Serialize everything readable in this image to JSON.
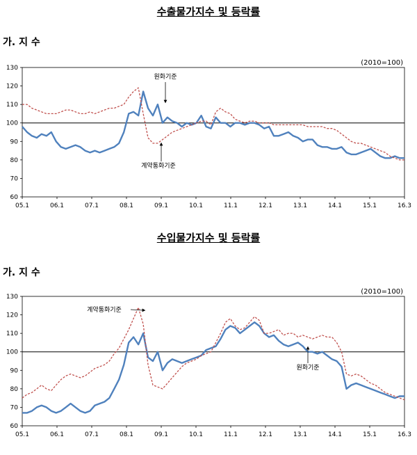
{
  "chart_data": [
    {
      "type": "line",
      "title": "수출물가지수 및 등락률",
      "subtitle": "가. 지 수",
      "unit": "(2010=100)",
      "ylim": [
        60,
        130
      ],
      "yticks": [
        60,
        70,
        80,
        90,
        100,
        110,
        120,
        130
      ],
      "x_tick_labels": [
        "05.1",
        "06.1",
        "07.1",
        "08.1",
        "09.1",
        "10.1",
        "11.1",
        "12.1",
        "13.1",
        "14.1",
        "15.1",
        "16.3"
      ],
      "reference_line": 100,
      "annotations": [
        "원화기준",
        "계약통화기준"
      ],
      "series": [
        {
          "name": "원화기준",
          "color": "#4f81bd",
          "style": "solid",
          "values": [
            98,
            95,
            93,
            92,
            94,
            93,
            95,
            90,
            87,
            86,
            87,
            88,
            87,
            85,
            84,
            85,
            84,
            85,
            86,
            87,
            89,
            95,
            105,
            106,
            104,
            117,
            108,
            104,
            110,
            100,
            103,
            101,
            100,
            98,
            100,
            99,
            100,
            104,
            98,
            97,
            103,
            100,
            100,
            98,
            100,
            100,
            99,
            100,
            100,
            99,
            97,
            98,
            93,
            93,
            94,
            95,
            93,
            92,
            90,
            91,
            91,
            88,
            87,
            87,
            86,
            86,
            87,
            84,
            83,
            83,
            84,
            85,
            86,
            84,
            82,
            81,
            81,
            82,
            81,
            81
          ]
        },
        {
          "name": "계약통화기준",
          "color": "#c0504d",
          "style": "dashed",
          "values": [
            110,
            110,
            108,
            107,
            106,
            105,
            105,
            105,
            106,
            107,
            107,
            106,
            105,
            105,
            106,
            105,
            106,
            107,
            108,
            108,
            109,
            110,
            114,
            117,
            119,
            105,
            92,
            89,
            89,
            91,
            93,
            95,
            96,
            97,
            98,
            99,
            100,
            101,
            101,
            99,
            106,
            108,
            106,
            105,
            102,
            101,
            100,
            101,
            101,
            100,
            100,
            100,
            99,
            99,
            99,
            99,
            99,
            99,
            99,
            98,
            98,
            98,
            98,
            97,
            97,
            96,
            94,
            92,
            90,
            89,
            89,
            88,
            87,
            86,
            85,
            84,
            82,
            81,
            80,
            80
          ]
        }
      ]
    },
    {
      "type": "line",
      "title": "수입물가지수 및 등락률",
      "subtitle": "가. 지 수",
      "unit": "(2010=100)",
      "ylim": [
        60,
        130
      ],
      "yticks": [
        60,
        70,
        80,
        90,
        100,
        110,
        120,
        130
      ],
      "x_tick_labels": [
        "05.1",
        "06.1",
        "07.1",
        "08.1",
        "09.1",
        "10.1",
        "11.1",
        "12.1",
        "13.1",
        "14.1",
        "15.1",
        "16.3"
      ],
      "reference_line": 100,
      "annotations": [
        "계약통화기준",
        "원화기준"
      ],
      "series": [
        {
          "name": "원화기준",
          "color": "#4f81bd",
          "style": "solid",
          "values": [
            67,
            67,
            68,
            70,
            71,
            70,
            68,
            67,
            68,
            70,
            72,
            70,
            68,
            67,
            68,
            71,
            72,
            73,
            75,
            80,
            85,
            93,
            105,
            108,
            104,
            110,
            97,
            95,
            100,
            90,
            94,
            96,
            95,
            94,
            95,
            96,
            97,
            98,
            101,
            102,
            103,
            107,
            112,
            114,
            113,
            110,
            112,
            114,
            116,
            114,
            110,
            108,
            109,
            106,
            104,
            103,
            104,
            105,
            103,
            100,
            100,
            99,
            100,
            98,
            96,
            95,
            92,
            80,
            82,
            83,
            82,
            81,
            80,
            79,
            78,
            77,
            76,
            75,
            76,
            76
          ]
        },
        {
          "name": "계약통화기준",
          "color": "#c0504d",
          "style": "dashed",
          "values": [
            75,
            77,
            78,
            80,
            82,
            80,
            79,
            82,
            85,
            87,
            88,
            87,
            86,
            87,
            89,
            91,
            92,
            93,
            95,
            99,
            102,
            107,
            112,
            118,
            124,
            115,
            93,
            82,
            81,
            80,
            83,
            86,
            89,
            92,
            94,
            95,
            96,
            98,
            99,
            100,
            105,
            110,
            116,
            118,
            114,
            112,
            113,
            116,
            119,
            117,
            110,
            110,
            111,
            112,
            109,
            110,
            110,
            108,
            109,
            108,
            107,
            108,
            109,
            108,
            108,
            105,
            100,
            88,
            87,
            88,
            87,
            85,
            83,
            82,
            80,
            78,
            77,
            76,
            75,
            74
          ]
        }
      ]
    }
  ]
}
